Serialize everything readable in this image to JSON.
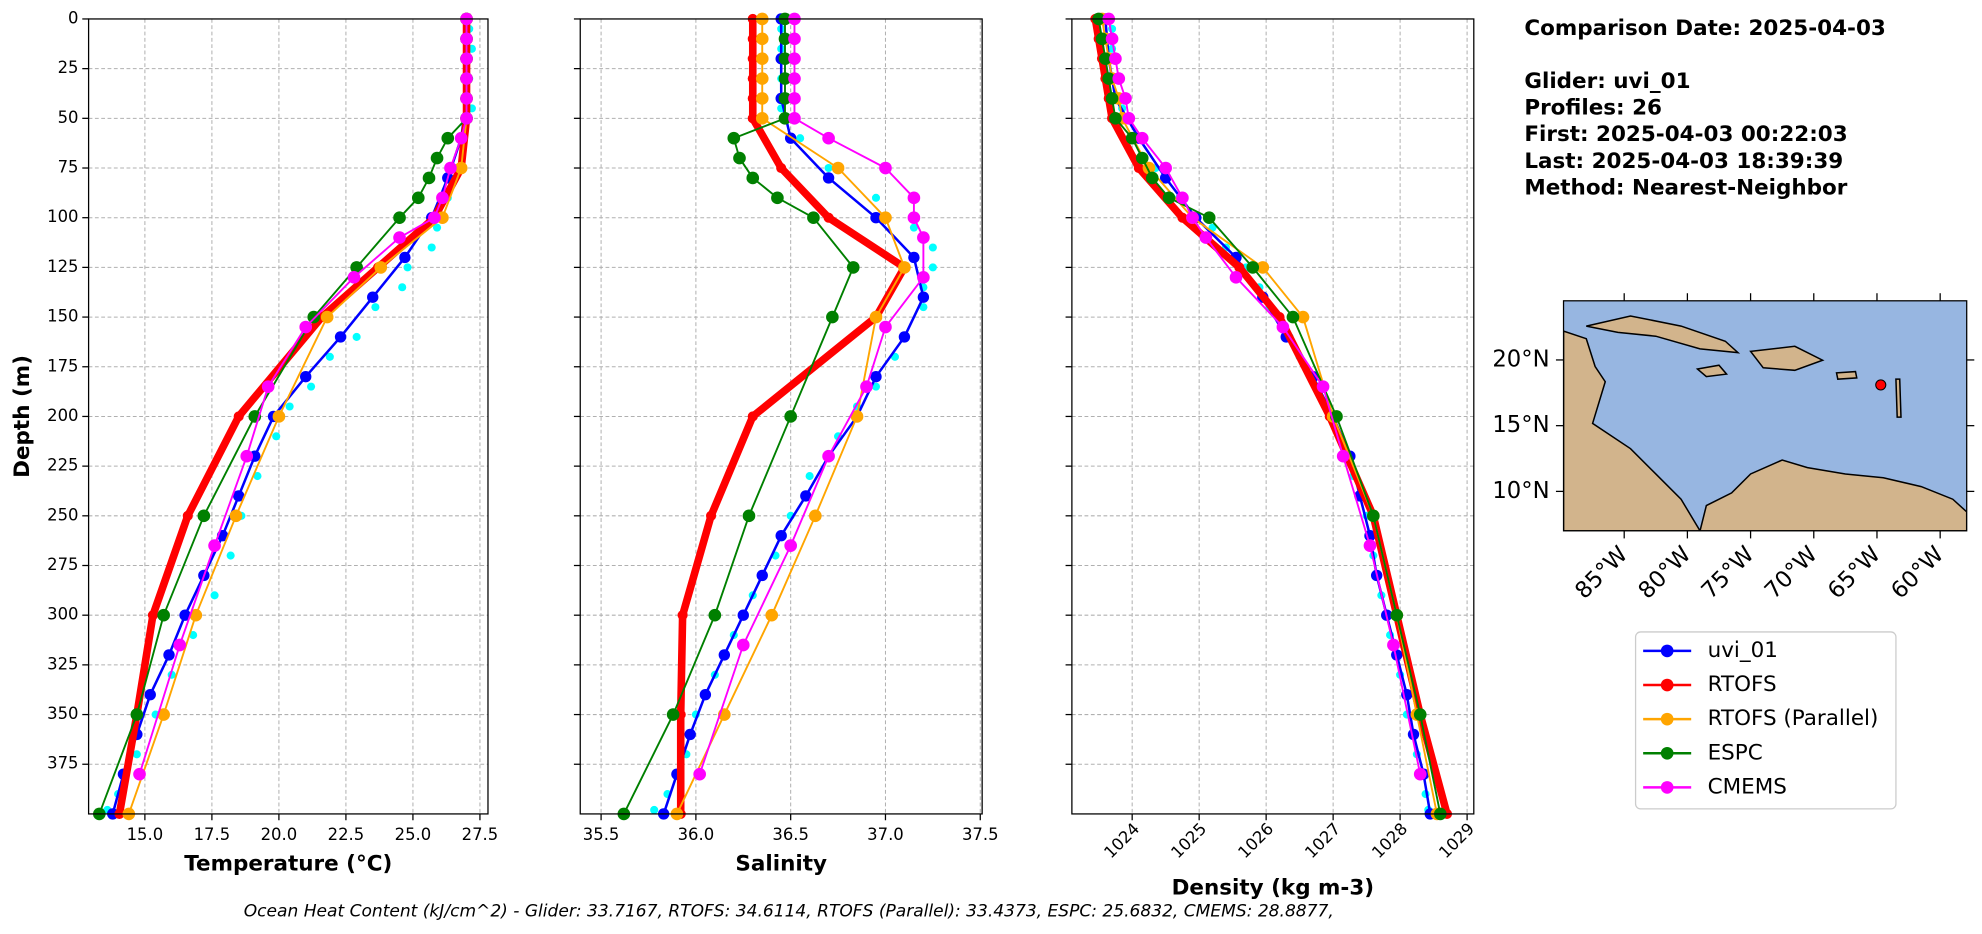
{
  "chart_data": [
    {
      "type": "line",
      "xlabel": "Temperature (°C)",
      "ylabel": "Depth (m)",
      "xlim": [
        12.9,
        27.8
      ],
      "ylim": [
        0,
        400
      ],
      "xticks": [
        {
          "value": 15,
          "label": "15.0"
        },
        17.5,
        {
          "value": 20,
          "label": "20.0"
        },
        22.5,
        {
          "value": 25,
          "label": "25.0"
        },
        27.5
      ],
      "yticks": [
        0,
        25,
        50,
        75,
        100,
        125,
        150,
        175,
        200,
        225,
        250,
        275,
        300,
        325,
        350,
        375
      ],
      "grid": true,
      "y_inverted": true,
      "raw": {
        "color": "#00ffff",
        "depth": [
          5,
          15,
          30,
          45,
          60,
          75,
          90,
          105,
          115,
          125,
          135,
          145,
          160,
          170,
          185,
          195,
          210,
          230,
          250,
          270,
          290,
          310,
          330,
          350,
          370,
          390,
          398
        ],
        "values": [
          27.1,
          27.2,
          27.1,
          27.2,
          26.9,
          26.6,
          26.3,
          25.9,
          25.7,
          24.8,
          24.6,
          23.6,
          22.9,
          21.9,
          21.2,
          20.4,
          19.9,
          19.2,
          18.6,
          18.2,
          17.6,
          16.8,
          16.0,
          15.4,
          14.7,
          14.0,
          13.6
        ]
      },
      "series": [
        {
          "name": "uvi_01",
          "color": "#0000ff",
          "depth": [
            0,
            20,
            40,
            60,
            80,
            100,
            120,
            140,
            160,
            180,
            200,
            220,
            240,
            260,
            280,
            300,
            320,
            340,
            360,
            380,
            400
          ],
          "values": [
            27.0,
            27.0,
            27.0,
            26.8,
            26.3,
            25.7,
            24.7,
            23.5,
            22.3,
            21.0,
            19.8,
            19.1,
            18.5,
            17.9,
            17.2,
            16.5,
            15.9,
            15.2,
            14.7,
            14.2,
            13.8
          ]
        },
        {
          "name": "RTOFS",
          "color": "#ff0000",
          "depth": [
            0,
            10,
            20,
            30,
            40,
            50,
            75,
            100,
            125,
            150,
            200,
            250,
            300,
            350,
            400
          ],
          "values": [
            27.0,
            27.0,
            27.0,
            27.0,
            27.0,
            27.0,
            26.8,
            25.8,
            23.7,
            21.6,
            18.5,
            16.6,
            15.3,
            14.7,
            14.05
          ]
        },
        {
          "name": "RTOFS (Parallel)",
          "color": "#ffa500",
          "depth": [
            0,
            10,
            20,
            30,
            40,
            50,
            75,
            100,
            125,
            150,
            200,
            250,
            300,
            350,
            400
          ],
          "values": [
            27.0,
            27.0,
            27.0,
            27.0,
            27.0,
            27.0,
            26.8,
            26.1,
            23.8,
            21.8,
            20.0,
            18.4,
            16.9,
            15.7,
            14.4
          ]
        },
        {
          "name": "ESPC",
          "color": "#008000",
          "depth": [
            0,
            10,
            20,
            30,
            40,
            50,
            60,
            70,
            80,
            90,
            100,
            125,
            150,
            200,
            250,
            300,
            350,
            400
          ],
          "values": [
            27.0,
            27.0,
            27.0,
            27.0,
            27.0,
            27.0,
            26.3,
            25.9,
            25.6,
            25.2,
            24.5,
            22.9,
            21.3,
            19.1,
            17.2,
            15.7,
            14.7,
            13.3
          ]
        },
        {
          "name": "CMEMS",
          "color": "#ff00ff",
          "depth": [
            0,
            10,
            20,
            30,
            40,
            50,
            60,
            75,
            90,
            100,
            110,
            130,
            155,
            185,
            220,
            265,
            315,
            380
          ],
          "values": [
            27.0,
            27.0,
            27.0,
            27.0,
            27.0,
            27.0,
            26.8,
            26.4,
            26.1,
            25.8,
            24.5,
            22.8,
            21.0,
            19.6,
            18.8,
            17.6,
            16.3,
            14.8
          ]
        }
      ]
    },
    {
      "type": "line",
      "xlabel": "Salinity",
      "xlim": [
        35.39,
        37.51
      ],
      "ylim": [
        0,
        400
      ],
      "xticks": [
        35.5,
        {
          "value": 36,
          "label": "36.0"
        },
        36.5,
        {
          "value": 37,
          "label": "37.0"
        },
        37.5
      ],
      "yticks": [
        0,
        25,
        50,
        75,
        100,
        125,
        150,
        175,
        200,
        225,
        250,
        275,
        300,
        325,
        350,
        375
      ],
      "grid": true,
      "y_inverted": true,
      "raw": {
        "color": "#00ffff",
        "depth": [
          5,
          15,
          30,
          45,
          60,
          75,
          90,
          105,
          115,
          125,
          135,
          145,
          160,
          170,
          185,
          195,
          210,
          230,
          250,
          270,
          290,
          310,
          330,
          350,
          370,
          390,
          398
        ],
        "values": [
          36.45,
          36.45,
          36.45,
          36.45,
          36.55,
          36.7,
          36.95,
          37.15,
          37.25,
          37.25,
          37.2,
          37.2,
          37.1,
          37.05,
          36.95,
          36.85,
          36.75,
          36.6,
          36.5,
          36.42,
          36.3,
          36.2,
          36.1,
          36.0,
          35.95,
          35.85,
          35.78
        ]
      },
      "series": [
        {
          "name": "uvi_01",
          "color": "#0000ff",
          "depth": [
            0,
            20,
            40,
            60,
            80,
            100,
            120,
            140,
            160,
            180,
            200,
            220,
            240,
            260,
            280,
            300,
            320,
            340,
            360,
            380,
            400
          ],
          "values": [
            36.45,
            36.45,
            36.45,
            36.5,
            36.7,
            36.95,
            37.15,
            37.2,
            37.1,
            36.95,
            36.85,
            36.7,
            36.58,
            36.45,
            36.35,
            36.25,
            36.15,
            36.05,
            35.97,
            35.9,
            35.83
          ]
        },
        {
          "name": "RTOFS",
          "color": "#ff0000",
          "depth": [
            0,
            10,
            20,
            30,
            40,
            50,
            75,
            100,
            125,
            150,
            200,
            250,
            300,
            350,
            400
          ],
          "values": [
            36.3,
            36.3,
            36.3,
            36.3,
            36.3,
            36.3,
            36.45,
            36.7,
            37.1,
            36.95,
            36.3,
            36.08,
            35.93,
            35.92,
            35.92
          ]
        },
        {
          "name": "RTOFS (Parallel)",
          "color": "#ffa500",
          "depth": [
            0,
            10,
            20,
            30,
            40,
            50,
            75,
            100,
            125,
            150,
            200,
            250,
            300,
            350,
            400
          ],
          "values": [
            36.35,
            36.35,
            36.35,
            36.35,
            36.35,
            36.35,
            36.75,
            37.0,
            37.1,
            36.95,
            36.85,
            36.63,
            36.4,
            36.15,
            35.9
          ]
        },
        {
          "name": "ESPC",
          "color": "#008000",
          "depth": [
            0,
            10,
            20,
            30,
            40,
            50,
            60,
            70,
            80,
            90,
            100,
            125,
            150,
            200,
            250,
            300,
            350,
            400
          ],
          "values": [
            36.47,
            36.47,
            36.47,
            36.47,
            36.47,
            36.47,
            36.2,
            36.23,
            36.3,
            36.43,
            36.62,
            36.83,
            36.72,
            36.5,
            36.28,
            36.1,
            35.88,
            35.62
          ]
        },
        {
          "name": "CMEMS",
          "color": "#ff00ff",
          "depth": [
            0,
            10,
            20,
            30,
            40,
            50,
            60,
            75,
            90,
            100,
            110,
            130,
            155,
            185,
            220,
            265,
            315,
            380
          ],
          "values": [
            36.52,
            36.52,
            36.52,
            36.52,
            36.52,
            36.52,
            36.7,
            37.0,
            37.15,
            37.15,
            37.2,
            37.2,
            37.0,
            36.9,
            36.7,
            36.5,
            36.25,
            36.02
          ]
        }
      ]
    },
    {
      "type": "line",
      "xlabel": "Density (kg m-3)",
      "xlim": [
        1023.1,
        1029.1
      ],
      "ylim": [
        0,
        400
      ],
      "xticks": [
        1024,
        1025,
        1026,
        1027,
        1028,
        1029
      ],
      "yticks": [
        0,
        25,
        50,
        75,
        100,
        125,
        150,
        175,
        200,
        225,
        250,
        275,
        300,
        325,
        350,
        375
      ],
      "grid": true,
      "y_inverted": true,
      "xtick_rotation": 45,
      "raw": {
        "color": "#00ffff",
        "depth": [
          5,
          15,
          30,
          45,
          60,
          75,
          90,
          105,
          115,
          125,
          135,
          145,
          160,
          170,
          185,
          195,
          210,
          230,
          250,
          270,
          290,
          310,
          330,
          350,
          370,
          390,
          398
        ],
        "values": [
          1023.7,
          1023.7,
          1023.75,
          1023.85,
          1024.1,
          1024.35,
          1024.7,
          1025.2,
          1025.4,
          1025.7,
          1025.9,
          1026.05,
          1026.35,
          1026.5,
          1026.75,
          1026.9,
          1027.1,
          1027.3,
          1027.5,
          1027.6,
          1027.72,
          1027.85,
          1028.0,
          1028.1,
          1028.25,
          1028.38,
          1028.42
        ]
      },
      "series": [
        {
          "name": "uvi_01",
          "color": "#0000ff",
          "depth": [
            0,
            20,
            40,
            60,
            80,
            100,
            120,
            140,
            160,
            180,
            200,
            220,
            240,
            260,
            280,
            300,
            320,
            340,
            360,
            380,
            400
          ],
          "values": [
            1023.6,
            1023.65,
            1023.75,
            1024.1,
            1024.5,
            1024.95,
            1025.55,
            1025.95,
            1026.3,
            1026.7,
            1027.0,
            1027.25,
            1027.4,
            1027.55,
            1027.65,
            1027.8,
            1027.95,
            1028.1,
            1028.2,
            1028.35,
            1028.45
          ]
        },
        {
          "name": "RTOFS",
          "color": "#ff0000",
          "depth": [
            0,
            10,
            20,
            30,
            40,
            50,
            75,
            100,
            125,
            150,
            200,
            250,
            300,
            350,
            400
          ],
          "values": [
            1023.45,
            1023.5,
            1023.55,
            1023.6,
            1023.65,
            1023.7,
            1024.1,
            1024.75,
            1025.6,
            1026.2,
            1026.95,
            1027.6,
            1027.95,
            1028.3,
            1028.7
          ]
        },
        {
          "name": "RTOFS (Parallel)",
          "color": "#ffa500",
          "depth": [
            0,
            10,
            20,
            30,
            40,
            50,
            75,
            100,
            125,
            150,
            200,
            250,
            300,
            350,
            400
          ],
          "values": [
            1023.55,
            1023.6,
            1023.65,
            1023.7,
            1023.8,
            1023.85,
            1024.25,
            1024.9,
            1025.95,
            1026.55,
            1027.0,
            1027.6,
            1027.95,
            1028.25,
            1028.55
          ]
        },
        {
          "name": "ESPC",
          "color": "#008000",
          "depth": [
            0,
            10,
            20,
            30,
            40,
            50,
            60,
            70,
            80,
            90,
            100,
            125,
            150,
            200,
            250,
            300,
            350,
            400
          ],
          "values": [
            1023.5,
            1023.55,
            1023.6,
            1023.65,
            1023.7,
            1023.75,
            1024.0,
            1024.15,
            1024.3,
            1024.55,
            1025.15,
            1025.8,
            1026.4,
            1027.05,
            1027.6,
            1027.95,
            1028.3,
            1028.6
          ]
        },
        {
          "name": "CMEMS",
          "color": "#ff00ff",
          "depth": [
            0,
            10,
            20,
            30,
            40,
            50,
            60,
            75,
            90,
            100,
            110,
            130,
            155,
            185,
            220,
            265,
            315,
            380
          ],
          "values": [
            1023.65,
            1023.7,
            1023.75,
            1023.8,
            1023.9,
            1023.95,
            1024.15,
            1024.5,
            1024.75,
            1024.9,
            1025.1,
            1025.55,
            1026.25,
            1026.85,
            1027.15,
            1027.55,
            1027.9,
            1028.3
          ]
        }
      ]
    }
  ],
  "info": [
    "Comparison Date: 2025-04-03",
    "Glider: uvi_01",
    "Profiles: 26",
    "First: 2025-04-03 00:22:03",
    "Last: 2025-04-03 18:39:39",
    "Method: Nearest-Neighbor"
  ],
  "map": {
    "xlim": [
      -89.8,
      -57.9
    ],
    "ylim": [
      7.0,
      24.5
    ],
    "xticks": [
      {
        "value": -85,
        "label": "85°W"
      },
      {
        "value": -80,
        "label": "80°W"
      },
      {
        "value": -75,
        "label": "75°W"
      },
      {
        "value": -70,
        "label": "70°W"
      },
      {
        "value": -65,
        "label": "65°W"
      },
      {
        "value": -60,
        "label": "60°W"
      }
    ],
    "yticks": [
      {
        "value": 20,
        "label": "20°N"
      },
      {
        "value": 15,
        "label": "15°N"
      },
      {
        "value": 10,
        "label": "10°N"
      }
    ],
    "glider_position": {
      "lon": -64.7,
      "lat": 18.1,
      "color": "#ff0000"
    }
  },
  "footer": "Ocean Heat Content (kJ/cm^2) - Glider: 33.7167,  RTOFS: 34.6114,  RTOFS (Parallel): 33.4373,  ESPC: 25.6832,  CMEMS: 28.8877,"
}
